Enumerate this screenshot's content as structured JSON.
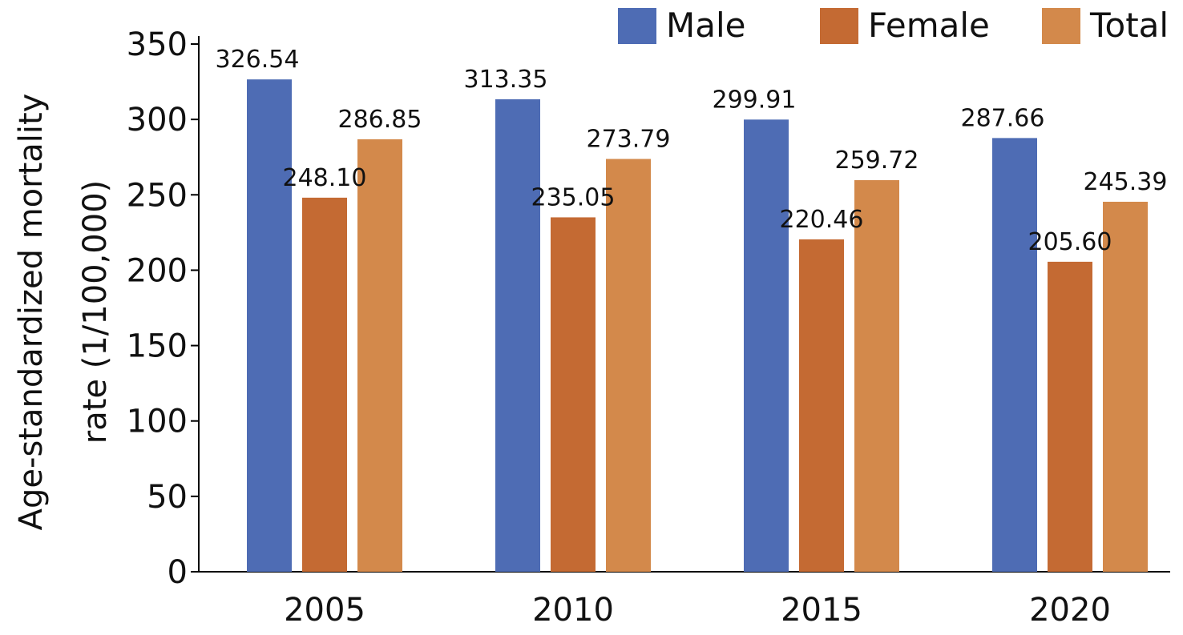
{
  "chart_data": {
    "type": "bar",
    "title": "",
    "xlabel": "",
    "ylabel": "Age-standardized mortality rate (1/100,000)",
    "ylabel_lines": [
      "Age-standardized mortality",
      "rate (1/100,000)"
    ],
    "categories": [
      "2005",
      "2010",
      "2015",
      "2020"
    ],
    "yticks": [
      0,
      50,
      100,
      150,
      200,
      250,
      300,
      350
    ],
    "ylim": [
      0,
      350
    ],
    "grid": false,
    "legend_position": "top-right",
    "series": [
      {
        "name": "Male",
        "color": "#4e6cb4",
        "values": [
          326.54,
          313.35,
          299.91,
          287.66
        ],
        "labels": [
          "326.54",
          "313.35",
          "299.91",
          "287.66"
        ]
      },
      {
        "name": "Female",
        "color": "#c46a33",
        "values": [
          248.1,
          235.05,
          220.46,
          205.6
        ],
        "labels": [
          "248.10",
          "235.05",
          "220.46",
          "205.60"
        ]
      },
      {
        "name": "Total",
        "color": "#d3894b",
        "values": [
          286.85,
          273.79,
          259.72,
          245.39
        ],
        "labels": [
          "286.85",
          "273.79",
          "259.72",
          "245.39"
        ]
      }
    ]
  }
}
